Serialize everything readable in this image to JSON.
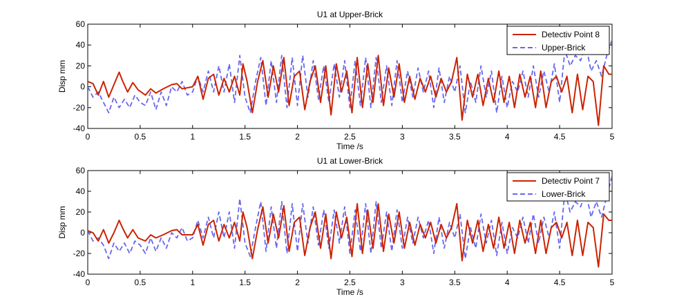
{
  "chart_data": [
    {
      "type": "line",
      "title": "U1 at Upper-Brick",
      "xlabel": "Time /s",
      "ylabel": "Disp mm",
      "xlim": [
        0,
        5
      ],
      "ylim": [
        -40,
        60
      ],
      "xticks": [
        "0",
        "0.5",
        "1",
        "1.5",
        "2",
        "2.5",
        "3",
        "3.5",
        "4",
        "4.5",
        "5"
      ],
      "yticks": [
        "-40",
        "-20",
        "0",
        "20",
        "40",
        "60"
      ],
      "grid": false,
      "legend_position": "top-right",
      "series": [
        {
          "name": "Detectiv Point 8",
          "color": "#cc2200",
          "style": "solid",
          "x": [
            0,
            0.05,
            0.1,
            0.15,
            0.2,
            0.25,
            0.3,
            0.33,
            0.38,
            0.43,
            0.48,
            0.55,
            0.6,
            0.65,
            0.72,
            0.8,
            0.85,
            0.9,
            1.0,
            1.05,
            1.1,
            1.15,
            1.2,
            1.25,
            1.3,
            1.35,
            1.4,
            1.45,
            1.48,
            1.52,
            1.57,
            1.62,
            1.67,
            1.72,
            1.77,
            1.82,
            1.87,
            1.92,
            1.97,
            2.02,
            2.07,
            2.12,
            2.17,
            2.22,
            2.27,
            2.32,
            2.37,
            2.42,
            2.47,
            2.52,
            2.57,
            2.62,
            2.67,
            2.72,
            2.77,
            2.82,
            2.87,
            2.92,
            2.97,
            3.02,
            3.07,
            3.12,
            3.17,
            3.22,
            3.27,
            3.32,
            3.37,
            3.42,
            3.47,
            3.52,
            3.57,
            3.62,
            3.67,
            3.72,
            3.77,
            3.82,
            3.87,
            3.92,
            3.97,
            4.02,
            4.07,
            4.12,
            4.17,
            4.22,
            4.27,
            4.32,
            4.37,
            4.42,
            4.47,
            4.52,
            4.57,
            4.62,
            4.67,
            4.72,
            4.77,
            4.82,
            4.87,
            4.92,
            4.97,
            5.0
          ],
          "y": [
            5,
            3,
            -8,
            5,
            -10,
            2,
            14,
            6,
            -5,
            4,
            -3,
            -8,
            -2,
            -6,
            -2,
            2,
            3,
            -2,
            0,
            10,
            -12,
            8,
            12,
            -8,
            8,
            -5,
            10,
            -8,
            22,
            5,
            -25,
            5,
            25,
            -10,
            20,
            -5,
            28,
            -18,
            10,
            15,
            -22,
            5,
            20,
            -15,
            20,
            -27,
            22,
            -5,
            15,
            -25,
            28,
            -20,
            22,
            -15,
            30,
            -18,
            18,
            -10,
            22,
            -15,
            10,
            -12,
            8,
            -5,
            10,
            -10,
            8,
            -5,
            5,
            28,
            -32,
            12,
            -10,
            12,
            -18,
            8,
            -15,
            15,
            -15,
            10,
            -20,
            12,
            -10,
            10,
            -20,
            15,
            -20,
            5,
            10,
            -5,
            10,
            -25,
            12,
            -22,
            10,
            5,
            -37,
            20,
            12,
            12
          ]
        },
        {
          "name": "Upper-Brick",
          "color": "#6666ee",
          "style": "dashed",
          "x": [
            0,
            0.05,
            0.1,
            0.15,
            0.2,
            0.25,
            0.3,
            0.35,
            0.4,
            0.45,
            0.5,
            0.55,
            0.6,
            0.65,
            0.7,
            0.75,
            0.8,
            0.85,
            0.9,
            0.95,
            1.0,
            1.05,
            1.1,
            1.15,
            1.2,
            1.25,
            1.3,
            1.35,
            1.4,
            1.45,
            1.5,
            1.55,
            1.6,
            1.65,
            1.7,
            1.75,
            1.8,
            1.85,
            1.9,
            1.95,
            2.0,
            2.05,
            2.1,
            2.15,
            2.2,
            2.25,
            2.3,
            2.35,
            2.4,
            2.45,
            2.5,
            2.55,
            2.6,
            2.65,
            2.7,
            2.75,
            2.8,
            2.85,
            2.9,
            2.95,
            3.0,
            3.05,
            3.1,
            3.15,
            3.2,
            3.25,
            3.3,
            3.35,
            3.4,
            3.45,
            3.5,
            3.55,
            3.6,
            3.65,
            3.7,
            3.75,
            3.8,
            3.85,
            3.9,
            3.95,
            4.0,
            4.05,
            4.1,
            4.15,
            4.2,
            4.25,
            4.3,
            4.35,
            4.4,
            4.45,
            4.5,
            4.55,
            4.6,
            4.65,
            4.7,
            4.75,
            4.8,
            4.85,
            4.9,
            4.95,
            5.0
          ],
          "y": [
            0,
            -10,
            -5,
            -15,
            -25,
            -10,
            -20,
            -12,
            -20,
            -8,
            -15,
            -18,
            -5,
            -22,
            -5,
            -18,
            0,
            -5,
            5,
            -8,
            -5,
            10,
            -5,
            15,
            -5,
            20,
            -5,
            22,
            -15,
            30,
            -10,
            -25,
            5,
            28,
            -18,
            25,
            -15,
            30,
            -20,
            28,
            -18,
            30,
            -10,
            25,
            -12,
            20,
            -15,
            22,
            -10,
            25,
            -20,
            25,
            -18,
            28,
            -20,
            28,
            -15,
            20,
            -18,
            25,
            -15,
            15,
            -10,
            18,
            -5,
            15,
            -20,
            18,
            -15,
            10,
            -5,
            20,
            -25,
            5,
            -15,
            20,
            -10,
            15,
            -25,
            10,
            -20,
            5,
            -5,
            15,
            -10,
            20,
            -10,
            15,
            -5,
            22,
            -15,
            35,
            20,
            30,
            25,
            40,
            15,
            25,
            10,
            30,
            45
          ]
        }
      ]
    },
    {
      "type": "line",
      "title": "U1 at Lower-Brick",
      "xlabel": "Time /s",
      "ylabel": "Disp mm",
      "xlim": [
        0,
        5
      ],
      "ylim": [
        -40,
        60
      ],
      "xticks": [
        "0",
        "0.5",
        "1",
        "1.5",
        "2",
        "2.5",
        "3",
        "3.5",
        "4",
        "4.5",
        "5"
      ],
      "yticks": [
        "-40",
        "-20",
        "0",
        "20",
        "40",
        "60"
      ],
      "grid": false,
      "legend_position": "top-right",
      "series": [
        {
          "name": "Detectiv Point 7",
          "color": "#cc2200",
          "style": "solid",
          "x": [
            0,
            0.05,
            0.1,
            0.15,
            0.2,
            0.25,
            0.3,
            0.33,
            0.38,
            0.43,
            0.48,
            0.55,
            0.6,
            0.65,
            0.72,
            0.8,
            0.85,
            0.9,
            1.0,
            1.05,
            1.1,
            1.15,
            1.2,
            1.25,
            1.3,
            1.35,
            1.4,
            1.45,
            1.48,
            1.52,
            1.57,
            1.62,
            1.67,
            1.72,
            1.77,
            1.82,
            1.87,
            1.92,
            1.97,
            2.02,
            2.07,
            2.12,
            2.17,
            2.22,
            2.27,
            2.32,
            2.37,
            2.42,
            2.47,
            2.52,
            2.57,
            2.62,
            2.67,
            2.72,
            2.77,
            2.82,
            2.87,
            2.92,
            2.97,
            3.02,
            3.07,
            3.12,
            3.17,
            3.22,
            3.27,
            3.32,
            3.37,
            3.42,
            3.47,
            3.52,
            3.57,
            3.62,
            3.67,
            3.72,
            3.77,
            3.82,
            3.87,
            3.92,
            3.97,
            4.02,
            4.07,
            4.12,
            4.17,
            4.22,
            4.27,
            4.32,
            4.37,
            4.42,
            4.47,
            4.52,
            4.57,
            4.62,
            4.67,
            4.72,
            4.77,
            4.82,
            4.87,
            4.92,
            4.97,
            5.0
          ],
          "y": [
            2,
            0,
            -8,
            3,
            -10,
            0,
            12,
            5,
            -5,
            3,
            -5,
            -8,
            -2,
            -5,
            -2,
            2,
            3,
            -2,
            -2,
            8,
            -12,
            8,
            12,
            -8,
            8,
            -5,
            10,
            -8,
            20,
            5,
            -25,
            3,
            25,
            -10,
            18,
            -5,
            26,
            -18,
            10,
            15,
            -22,
            5,
            20,
            -15,
            18,
            -25,
            20,
            -5,
            15,
            -23,
            28,
            -20,
            22,
            -15,
            28,
            -18,
            18,
            -10,
            20,
            -15,
            10,
            -12,
            8,
            -5,
            10,
            -10,
            8,
            -5,
            5,
            28,
            -27,
            12,
            -10,
            12,
            -18,
            8,
            -15,
            15,
            -15,
            10,
            -20,
            12,
            -10,
            10,
            -20,
            12,
            -20,
            5,
            10,
            -5,
            10,
            -22,
            12,
            -22,
            10,
            5,
            -33,
            18,
            12,
            12
          ]
        },
        {
          "name": "Lower-Brick",
          "color": "#6666ee",
          "style": "dashed",
          "x": [
            0,
            0.05,
            0.1,
            0.15,
            0.2,
            0.25,
            0.3,
            0.35,
            0.4,
            0.45,
            0.5,
            0.55,
            0.6,
            0.65,
            0.7,
            0.75,
            0.8,
            0.85,
            0.9,
            0.95,
            1.0,
            1.05,
            1.1,
            1.15,
            1.2,
            1.25,
            1.3,
            1.35,
            1.4,
            1.45,
            1.5,
            1.55,
            1.6,
            1.65,
            1.7,
            1.75,
            1.8,
            1.85,
            1.9,
            1.95,
            2.0,
            2.05,
            2.1,
            2.15,
            2.2,
            2.25,
            2.3,
            2.35,
            2.4,
            2.45,
            2.5,
            2.55,
            2.6,
            2.65,
            2.7,
            2.75,
            2.8,
            2.85,
            2.9,
            2.95,
            3.0,
            3.05,
            3.1,
            3.15,
            3.2,
            3.25,
            3.3,
            3.35,
            3.4,
            3.45,
            3.5,
            3.55,
            3.6,
            3.65,
            3.7,
            3.75,
            3.8,
            3.85,
            3.9,
            3.95,
            4.0,
            4.05,
            4.1,
            4.15,
            4.2,
            4.25,
            4.3,
            4.35,
            4.4,
            4.45,
            4.5,
            4.55,
            4.6,
            4.65,
            4.7,
            4.75,
            4.8,
            4.85,
            4.9,
            4.95,
            5.0
          ],
          "y": [
            2,
            -8,
            -5,
            -12,
            -25,
            -10,
            -18,
            -10,
            -20,
            -8,
            -12,
            -20,
            -5,
            -18,
            -5,
            -15,
            0,
            -5,
            5,
            -8,
            -5,
            12,
            -5,
            15,
            -5,
            20,
            -5,
            20,
            -15,
            33,
            -10,
            -23,
            5,
            30,
            -18,
            25,
            -15,
            30,
            -20,
            28,
            -18,
            28,
            -10,
            25,
            -12,
            22,
            -15,
            22,
            -10,
            25,
            -20,
            22,
            -18,
            28,
            -20,
            30,
            -15,
            20,
            -18,
            22,
            -15,
            15,
            -10,
            15,
            -5,
            12,
            -20,
            15,
            -15,
            10,
            -5,
            18,
            -25,
            5,
            -15,
            18,
            -10,
            12,
            -22,
            10,
            -20,
            5,
            -5,
            15,
            -10,
            18,
            -10,
            15,
            -5,
            20,
            -15,
            40,
            20,
            30,
            25,
            40,
            15,
            30,
            15,
            35,
            55
          ]
        }
      ]
    }
  ]
}
